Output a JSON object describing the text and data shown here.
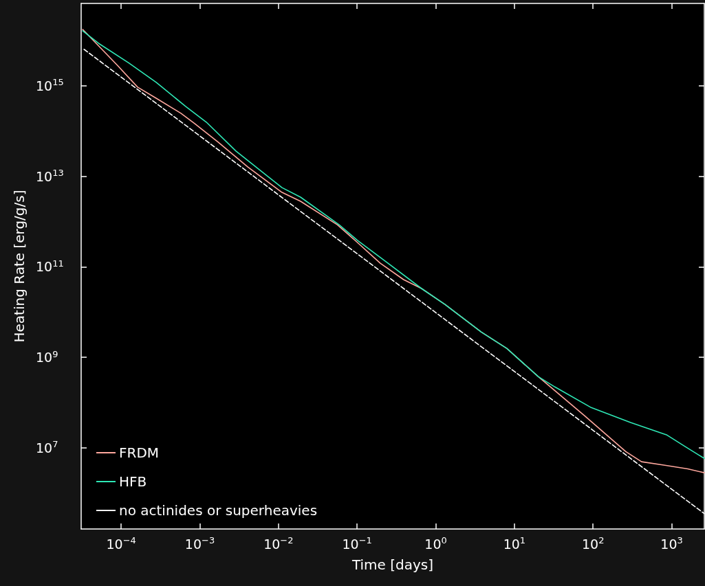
{
  "chart_data": {
    "type": "line",
    "xlabel": "Time [days]",
    "ylabel": "Heating Rate [erg/g/s]",
    "log": "xy",
    "grid": false,
    "legend": "bottom left",
    "marker": "none",
    "xlim": [
      3.1e-05,
      2600
    ],
    "ylim": [
      160000.0,
      6.6e+16
    ],
    "xticks": [
      {
        "value": 0.0001,
        "label": "10$^{−4}$"
      },
      {
        "value": 0.001,
        "label": "10$^{−3}$"
      },
      {
        "value": 0.01,
        "label": "10$^{−2}$"
      },
      {
        "value": 0.1,
        "label": "10$^{−1}$"
      },
      {
        "value": 1,
        "label": "10$^{0}$"
      },
      {
        "value": 10,
        "label": "10$^{1}$"
      },
      {
        "value": 100,
        "label": "10$^{2}$"
      },
      {
        "value": 1000,
        "label": "10$^{3}$"
      }
    ],
    "yticks": [
      {
        "value": 10000000.0,
        "label": "10$^{7}$"
      },
      {
        "value": 1000000000.0,
        "label": "10$^{9}$"
      },
      {
        "value": 100000000000.0,
        "label": "10$^{11}$"
      },
      {
        "value": 10000000000000.0,
        "label": "10$^{13}$"
      },
      {
        "value": 1000000000000000.0,
        "label": "10$^{15}$"
      }
    ],
    "series": [
      {
        "name": "FRDM",
        "color": "#ffa89e",
        "line_style": "solid",
        "x": [
          3.24e-05,
          8.9e-05,
          0.000162,
          0.000279,
          0.000575,
          0.00086,
          0.00171,
          0.00406,
          0.0111,
          0.0191,
          0.056,
          0.1016,
          0.197,
          0.39,
          0.66,
          1.31,
          3.8,
          8.0,
          20.2,
          78,
          261,
          414,
          820,
          1600,
          2600
        ],
        "values": [
          1.76e+16,
          2860000000000000.0,
          930000000000000.0,
          530000000000000.0,
          247000000000000.0,
          146000000000000.0,
          57000000000000.0,
          16100000000000.0,
          4400000000000.0,
          2800000000000.0,
          850000000000.0,
          340000000000.0,
          120000000000.0,
          52000000000.0,
          33000000000.0,
          14700000000.0,
          3600000000.0,
          1570000000.0,
          370000000.0,
          51000000.0,
          8200000.0,
          4900000.0,
          4100000.0,
          3400000.0,
          2800000.0
        ]
      },
      {
        "name": "HFB",
        "color": "#2ee8b6",
        "line_style": "solid",
        "x": [
          3.24e-05,
          5.15e-05,
          0.000125,
          0.000279,
          0.00066,
          0.00121,
          0.00288,
          0.0057,
          0.0111,
          0.0191,
          0.059,
          0.1016,
          0.228,
          0.66,
          1.31,
          3.8,
          8.0,
          20.2,
          32.8,
          95,
          300,
          873,
          1500,
          2600
        ],
        "values": [
          1.64e+16,
          8700000000000000.0,
          3200000000000000.0,
          1190000000000000.0,
          350000000000000.0,
          157000000000000.0,
          36000000000000.0,
          14000000000000.0,
          5600000000000.0,
          3450000000000.0,
          850000000000.0,
          380000000000.0,
          133000000000.0,
          33000000000.0,
          14700000000.0,
          3600000000.0,
          1570000000.0,
          370000000.0,
          220000000.0,
          77000000.0,
          36000000.0,
          19000000.0,
          10500000.0,
          5800000.0
        ]
      },
      {
        "name": "no actinides or superheavies",
        "color": "#ffffff",
        "line_style": "dashed",
        "x": [
          3.37e-05,
          2600
        ],
        "values": [
          6400000000000000.0,
          350000.0
        ]
      }
    ]
  }
}
